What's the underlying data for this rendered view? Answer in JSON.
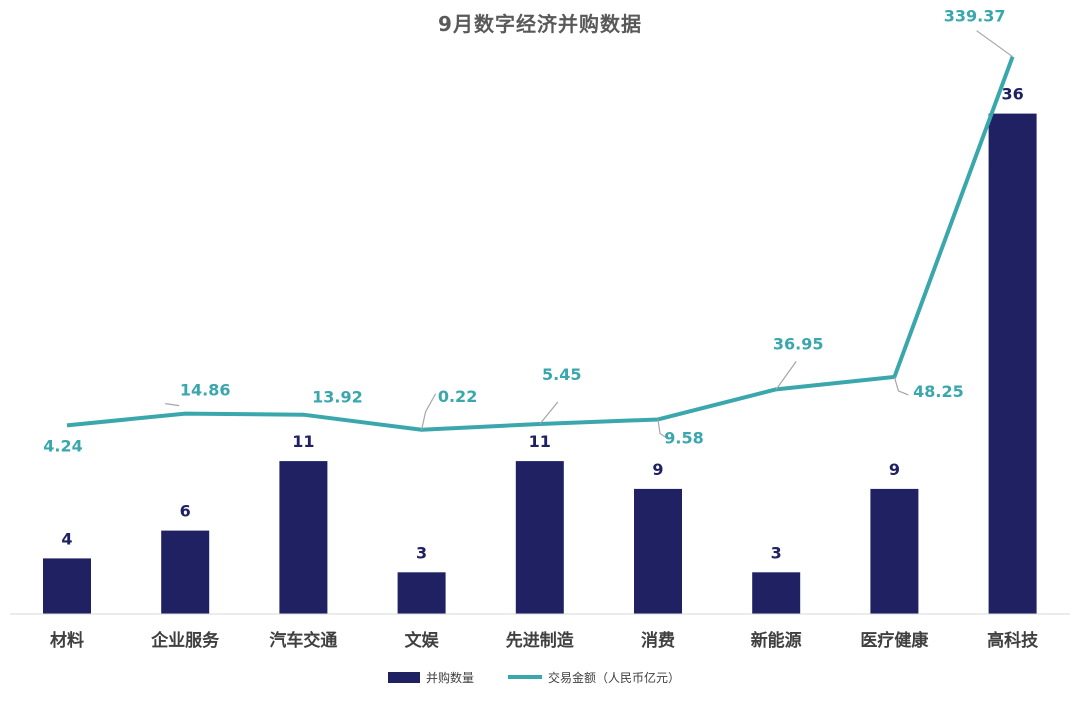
{
  "chart_data": {
    "type": "bar",
    "title": "9月数字经济并购数据",
    "categories": [
      "材料",
      "企业服务",
      "汽车交通",
      "文娱",
      "先进制造",
      "消费",
      "新能源",
      "医疗健康",
      "高科技"
    ],
    "series": [
      {
        "name": "并购数量",
        "type": "bar",
        "color": "#1f2163",
        "values": [
          4,
          6,
          11,
          3,
          11,
          9,
          3,
          9,
          36
        ]
      },
      {
        "name": "交易金额（人民币亿元）",
        "type": "line",
        "color": "#3aa7ad",
        "values": [
          4.24,
          14.86,
          13.92,
          0.22,
          5.45,
          9.58,
          36.95,
          48.25,
          339.37
        ]
      }
    ],
    "legend_position": "bottom-center",
    "grid": false
  }
}
